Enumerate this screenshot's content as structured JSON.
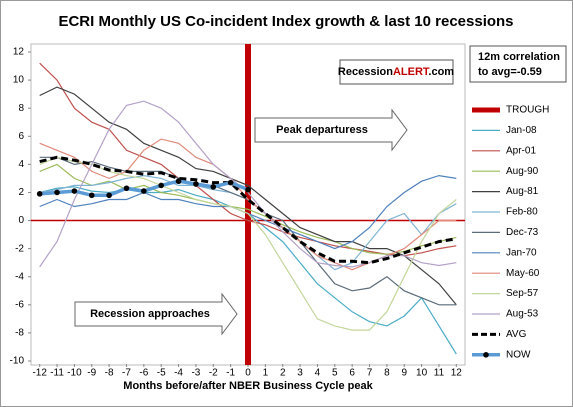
{
  "chart_data": {
    "type": "line",
    "title": "ECRI Monthly US Co-incident  Index growth & last 10 recessions",
    "x_label": "Months before/after NBER Business Cycle peak",
    "x": [
      -12,
      -11,
      -10,
      -9,
      -8,
      -7,
      -6,
      -5,
      -4,
      -3,
      -2,
      -1,
      0,
      1,
      2,
      3,
      4,
      5,
      6,
      7,
      8,
      9,
      10,
      11,
      12
    ],
    "xlim": [
      -12.5,
      12.5
    ],
    "xticks": [
      -12,
      -11,
      -10,
      -9,
      -8,
      -7,
      -6,
      -5,
      -4,
      -3,
      -2,
      -1,
      0,
      1,
      2,
      3,
      4,
      5,
      6,
      7,
      8,
      9,
      10,
      11,
      12
    ],
    "ylim": [
      -10,
      12
    ],
    "yticks": [
      -10,
      -8,
      -6,
      -4,
      -2,
      0,
      2,
      4,
      6,
      8,
      10,
      12
    ],
    "grid": false,
    "trough": {
      "name": "TROUGH",
      "color": "#c00000",
      "x": 0
    },
    "series": [
      {
        "name": "Jan-08",
        "color": "#4bacc6",
        "values": [
          2.0,
          2.3,
          2.4,
          2.1,
          2.0,
          2.2,
          2.0,
          2.0,
          2.2,
          1.8,
          1.5,
          1.0,
          0.5,
          -0.5,
          -1.5,
          -3.0,
          -4.5,
          -5.5,
          -6.5,
          -7.2,
          -7.5,
          -6.8,
          -5.5,
          -7.5,
          -9.5
        ]
      },
      {
        "name": "Apr-01",
        "color": "#c0504d",
        "values": [
          11.2,
          10.0,
          8.0,
          7.0,
          6.5,
          5.0,
          4.5,
          4.0,
          3.0,
          2.5,
          1.5,
          0.5,
          0.0,
          -0.3,
          -0.8,
          -1.2,
          -1.5,
          -1.8,
          -2.0,
          -2.2,
          -2.4,
          -2.5,
          -2.3,
          -2.0,
          -1.8
        ]
      },
      {
        "name": "Aug-90",
        "color": "#9bbb59",
        "values": [
          3.5,
          4.0,
          3.0,
          2.5,
          2.8,
          2.2,
          2.5,
          2.0,
          1.8,
          1.5,
          1.2,
          1.0,
          0.8,
          0.3,
          -0.3,
          -0.8,
          -1.2,
          -1.5,
          -2.0,
          -2.3,
          -2.4,
          -2.2,
          -1.8,
          -1.5,
          -1.2
        ]
      },
      {
        "name": "Aug-81",
        "color": "#404040",
        "values": [
          8.9,
          9.5,
          9.0,
          8.0,
          7.0,
          6.5,
          5.5,
          5.0,
          4.5,
          3.7,
          3.5,
          3.0,
          2.5,
          1.5,
          0.5,
          -0.5,
          -1.0,
          -1.5,
          -1.5,
          -2.0,
          -2.0,
          -2.5,
          -3.5,
          -4.5,
          -6.0
        ]
      },
      {
        "name": "Feb-80",
        "color": "#7fb3d5",
        "values": [
          2.0,
          2.2,
          2.5,
          2.5,
          2.7,
          3.0,
          3.2,
          3.0,
          2.5,
          2.5,
          2.2,
          2.0,
          1.5,
          0.5,
          -0.5,
          -1.5,
          -2.5,
          -3.5,
          -3.0,
          -1.5,
          0.0,
          0.5,
          -1.0,
          0.5,
          1.2
        ]
      },
      {
        "name": "Dec-73",
        "color": "#5a6b7a",
        "values": [
          4.5,
          4.5,
          4.0,
          4.2,
          3.8,
          3.5,
          3.5,
          3.5,
          3.0,
          2.5,
          2.5,
          2.0,
          1.5,
          0.5,
          0.0,
          -1.5,
          -3.0,
          -4.5,
          -5.0,
          -4.8,
          -4.0,
          -5.0,
          -5.5,
          -6.0,
          -6.0
        ]
      },
      {
        "name": "Jan-70",
        "color": "#4f81bd",
        "values": [
          1.0,
          1.5,
          1.0,
          1.2,
          1.5,
          1.5,
          2.0,
          1.5,
          1.5,
          1.2,
          1.0,
          1.0,
          0.5,
          0.0,
          -0.5,
          -1.0,
          -1.5,
          -2.0,
          -1.5,
          -0.5,
          1.0,
          2.0,
          2.8,
          3.2,
          3.0
        ]
      },
      {
        "name": "May-60",
        "color": "#e0897a",
        "values": [
          5.5,
          5.0,
          4.5,
          3.5,
          3.0,
          3.5,
          5.0,
          5.8,
          5.5,
          4.5,
          4.0,
          3.0,
          1.5,
          0.5,
          -0.5,
          -1.5,
          -2.5,
          -3.0,
          -3.5,
          -3.0,
          -2.5,
          -2.0,
          -1.0,
          0.0,
          0.0
        ]
      },
      {
        "name": "Sep-57",
        "color": "#c3d69b",
        "values": [
          4.0,
          4.5,
          4.2,
          4.0,
          3.5,
          3.2,
          3.0,
          2.5,
          2.0,
          1.5,
          1.2,
          1.0,
          0.5,
          -1.0,
          -3.0,
          -5.0,
          -7.0,
          -7.5,
          -7.8,
          -7.8,
          -6.5,
          -4.0,
          -1.5,
          0.5,
          1.5
        ]
      },
      {
        "name": "Aug-53",
        "color": "#b3a2c7",
        "values": [
          -3.3,
          -1.5,
          1.5,
          4.0,
          6.5,
          8.2,
          8.5,
          8.0,
          7.0,
          5.5,
          4.0,
          3.0,
          2.0,
          0.5,
          -0.8,
          -2.0,
          -3.0,
          -3.2,
          -3.3,
          -3.0,
          -2.5,
          -2.5,
          -3.0,
          -3.2,
          -3.0
        ]
      },
      {
        "name": "AVG",
        "color": "#000000",
        "style": "dashed",
        "values": [
          4.2,
          4.5,
          4.3,
          4.0,
          3.6,
          3.5,
          3.3,
          3.4,
          3.0,
          2.9,
          2.7,
          2.7,
          1.5,
          0.5,
          -0.5,
          -1.5,
          -2.3,
          -2.9,
          -2.9,
          -3.0,
          -2.7,
          -2.3,
          -1.9,
          -1.5,
          -1.3
        ]
      },
      {
        "name": "NOW",
        "color": "#1f5fbf",
        "style": "markers",
        "values": [
          1.9,
          2.0,
          2.1,
          1.8,
          1.8,
          2.3,
          2.1,
          2.5,
          2.8,
          2.6,
          2.4,
          2.7,
          2.2,
          null,
          null,
          null,
          null,
          null,
          null,
          null,
          null,
          null,
          null,
          null,
          null
        ]
      }
    ],
    "annotations": {
      "site": [
        "Recession",
        "ALERT",
        ".com"
      ],
      "correlation": [
        "12m correlation",
        "to avg=-0.59"
      ],
      "peak": "Peak departuress",
      "approach": "Recession approaches"
    }
  }
}
